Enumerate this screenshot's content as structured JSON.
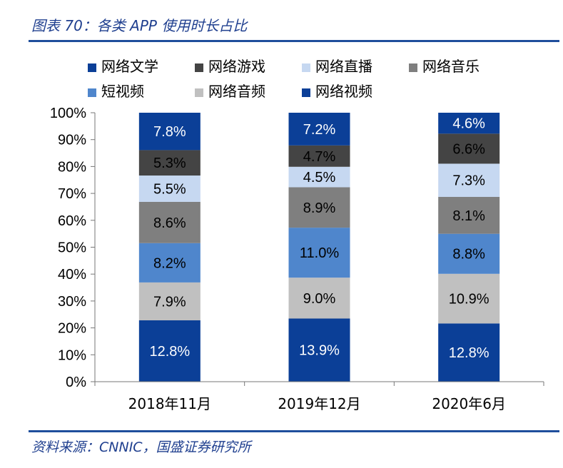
{
  "figure_title": "图表 70：各类 APP 使用时长占比",
  "source_note": "资料来源：CNNIC，国盛证券研究所",
  "chart_data": {
    "type": "bar",
    "stacked": true,
    "categories": [
      "2018年11月",
      "2019年12月",
      "2020年6月"
    ],
    "ylim": [
      0,
      100
    ],
    "y_ticks": [
      "0%",
      "10%",
      "20%",
      "30%",
      "40%",
      "50%",
      "60%",
      "70%",
      "80%",
      "90%",
      "100%"
    ],
    "legend_position": "top",
    "series": [
      {
        "name": "网络视频",
        "color": "#0b3f97",
        "label_color": "#ffffff",
        "values": [
          12.8,
          13.9,
          12.8
        ],
        "labels": [
          "12.8%",
          "13.9%",
          "12.8%"
        ]
      },
      {
        "name": "网络音频",
        "color": "#c0c0c0",
        "label_color": "#000000",
        "values": [
          7.9,
          9.0,
          10.9
        ],
        "labels": [
          "7.9%",
          "9.0%",
          "10.9%"
        ]
      },
      {
        "name": "短视频",
        "color": "#4f86cc",
        "label_color": "#000000",
        "values": [
          8.2,
          11.0,
          8.8
        ],
        "labels": [
          "8.2%",
          "11.0%",
          "8.8%"
        ]
      },
      {
        "name": "网络音乐",
        "color": "#7f7f7f",
        "label_color": "#000000",
        "values": [
          8.6,
          8.9,
          8.1
        ],
        "labels": [
          "8.6%",
          "8.9%",
          "8.1%"
        ]
      },
      {
        "name": "网络直播",
        "color": "#c6d8f1",
        "label_color": "#000000",
        "values": [
          5.5,
          4.5,
          7.3
        ],
        "labels": [
          "5.5%",
          "4.5%",
          "7.3%"
        ]
      },
      {
        "name": "网络游戏",
        "color": "#444444",
        "label_color": "#000000",
        "values": [
          5.3,
          4.7,
          6.6
        ],
        "labels": [
          "5.3%",
          "4.7%",
          "6.6%"
        ]
      },
      {
        "name": "网络文学",
        "color": "#0b3f97",
        "label_color": "#ffffff",
        "values": [
          7.8,
          7.2,
          4.6
        ],
        "labels": [
          "7.8%",
          "7.2%",
          "4.6%"
        ]
      }
    ],
    "legend": [
      {
        "name": "网络文学",
        "color": "#0b3f97"
      },
      {
        "name": "网络游戏",
        "color": "#444444"
      },
      {
        "name": "网络直播",
        "color": "#c6d8f1"
      },
      {
        "name": "网络音乐",
        "color": "#7f7f7f"
      },
      {
        "name": "短视频",
        "color": "#4f86cc"
      },
      {
        "name": "网络音频",
        "color": "#c0c0c0"
      },
      {
        "name": "网络视频",
        "color": "#0b3f97"
      }
    ]
  }
}
